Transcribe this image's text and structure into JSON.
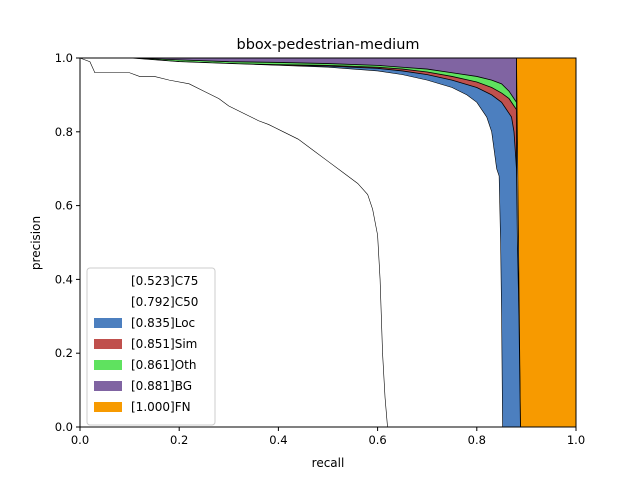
{
  "chart_data": {
    "type": "area",
    "title": "bbox-pedestrian-medium",
    "xlabel": "recall",
    "ylabel": "precision",
    "xlim": [
      0,
      1
    ],
    "ylim": [
      0,
      1
    ],
    "x_ticks": [
      "0.0",
      "0.2",
      "0.4",
      "0.6",
      "0.8",
      "1.0"
    ],
    "y_ticks": [
      "0.0",
      "0.2",
      "0.4",
      "0.6",
      "0.8",
      "1.0"
    ],
    "legend_position": "lower-left",
    "series": [
      {
        "name": "[0.523]C75",
        "color": "#ffffff",
        "points": [
          [
            0,
            1
          ],
          [
            0.02,
            0.99
          ],
          [
            0.03,
            0.96
          ],
          [
            0.05,
            0.96
          ],
          [
            0.1,
            0.96
          ],
          [
            0.12,
            0.95
          ],
          [
            0.15,
            0.95
          ],
          [
            0.18,
            0.94
          ],
          [
            0.22,
            0.93
          ],
          [
            0.25,
            0.91
          ],
          [
            0.28,
            0.89
          ],
          [
            0.3,
            0.87
          ],
          [
            0.33,
            0.85
          ],
          [
            0.36,
            0.83
          ],
          [
            0.38,
            0.82
          ],
          [
            0.41,
            0.8
          ],
          [
            0.44,
            0.78
          ],
          [
            0.47,
            0.75
          ],
          [
            0.5,
            0.72
          ],
          [
            0.53,
            0.69
          ],
          [
            0.56,
            0.66
          ],
          [
            0.58,
            0.63
          ],
          [
            0.59,
            0.59
          ],
          [
            0.6,
            0.52
          ],
          [
            0.605,
            0.4
          ],
          [
            0.61,
            0.2
          ],
          [
            0.615,
            0.08
          ],
          [
            0.62,
            0
          ]
        ]
      },
      {
        "name": "[0.792]C50",
        "color": "#ffffff",
        "points": [
          [
            0,
            1
          ],
          [
            0.1,
            1
          ],
          [
            0.2,
            0.99
          ],
          [
            0.3,
            0.985
          ],
          [
            0.4,
            0.98
          ],
          [
            0.5,
            0.975
          ],
          [
            0.55,
            0.97
          ],
          [
            0.6,
            0.965
          ],
          [
            0.65,
            0.955
          ],
          [
            0.7,
            0.94
          ],
          [
            0.75,
            0.92
          ],
          [
            0.78,
            0.9
          ],
          [
            0.8,
            0.88
          ],
          [
            0.81,
            0.86
          ],
          [
            0.82,
            0.84
          ],
          [
            0.83,
            0.8
          ],
          [
            0.835,
            0.75
          ],
          [
            0.84,
            0.7
          ],
          [
            0.845,
            0.68
          ],
          [
            0.848,
            0.5
          ],
          [
            0.85,
            0.3
          ],
          [
            0.852,
            0
          ]
        ]
      },
      {
        "name": "[0.835]Loc",
        "color": "#4c7fbf",
        "points": [
          [
            0,
            1
          ],
          [
            0.1,
            1
          ],
          [
            0.2,
            0.99
          ],
          [
            0.3,
            0.985
          ],
          [
            0.4,
            0.98
          ],
          [
            0.5,
            0.978
          ],
          [
            0.6,
            0.972
          ],
          [
            0.65,
            0.965
          ],
          [
            0.7,
            0.955
          ],
          [
            0.75,
            0.94
          ],
          [
            0.8,
            0.92
          ],
          [
            0.83,
            0.9
          ],
          [
            0.85,
            0.88
          ],
          [
            0.86,
            0.86
          ],
          [
            0.87,
            0.84
          ],
          [
            0.875,
            0.8
          ],
          [
            0.88,
            0.7
          ],
          [
            0.882,
            0.5
          ],
          [
            0.885,
            0.3
          ],
          [
            0.888,
            0
          ]
        ]
      },
      {
        "name": "[0.851]Sim",
        "color": "#c0504d",
        "points": [
          [
            0,
            1
          ],
          [
            0.1,
            1
          ],
          [
            0.2,
            0.99
          ],
          [
            0.3,
            0.985
          ],
          [
            0.4,
            0.982
          ],
          [
            0.5,
            0.98
          ],
          [
            0.6,
            0.975
          ],
          [
            0.65,
            0.97
          ],
          [
            0.7,
            0.962
          ],
          [
            0.75,
            0.95
          ],
          [
            0.8,
            0.935
          ],
          [
            0.83,
            0.92
          ],
          [
            0.85,
            0.905
          ],
          [
            0.865,
            0.89
          ],
          [
            0.875,
            0.87
          ],
          [
            0.88,
            0.86
          ]
        ]
      },
      {
        "name": "[0.861]Oth",
        "color": "#5fe25f",
        "points": [
          [
            0,
            1
          ],
          [
            0.1,
            1
          ],
          [
            0.2,
            0.995
          ],
          [
            0.3,
            0.99
          ],
          [
            0.4,
            0.988
          ],
          [
            0.5,
            0.985
          ],
          [
            0.6,
            0.98
          ],
          [
            0.65,
            0.975
          ],
          [
            0.7,
            0.97
          ],
          [
            0.75,
            0.96
          ],
          [
            0.8,
            0.95
          ],
          [
            0.83,
            0.94
          ],
          [
            0.85,
            0.93
          ],
          [
            0.865,
            0.91
          ],
          [
            0.875,
            0.89
          ],
          [
            0.88,
            0.88
          ]
        ]
      },
      {
        "name": "[0.881]BG",
        "color": "#8064a2",
        "points": [
          [
            0,
            1
          ],
          [
            0.88,
            1
          ],
          [
            0.88,
            0.88
          ]
        ]
      },
      {
        "name": "[1.000]FN",
        "color": "#f79a00",
        "points": [
          [
            0.88,
            1
          ],
          [
            1,
            1
          ],
          [
            1,
            0
          ],
          [
            0.888,
            0
          ]
        ]
      }
    ]
  }
}
